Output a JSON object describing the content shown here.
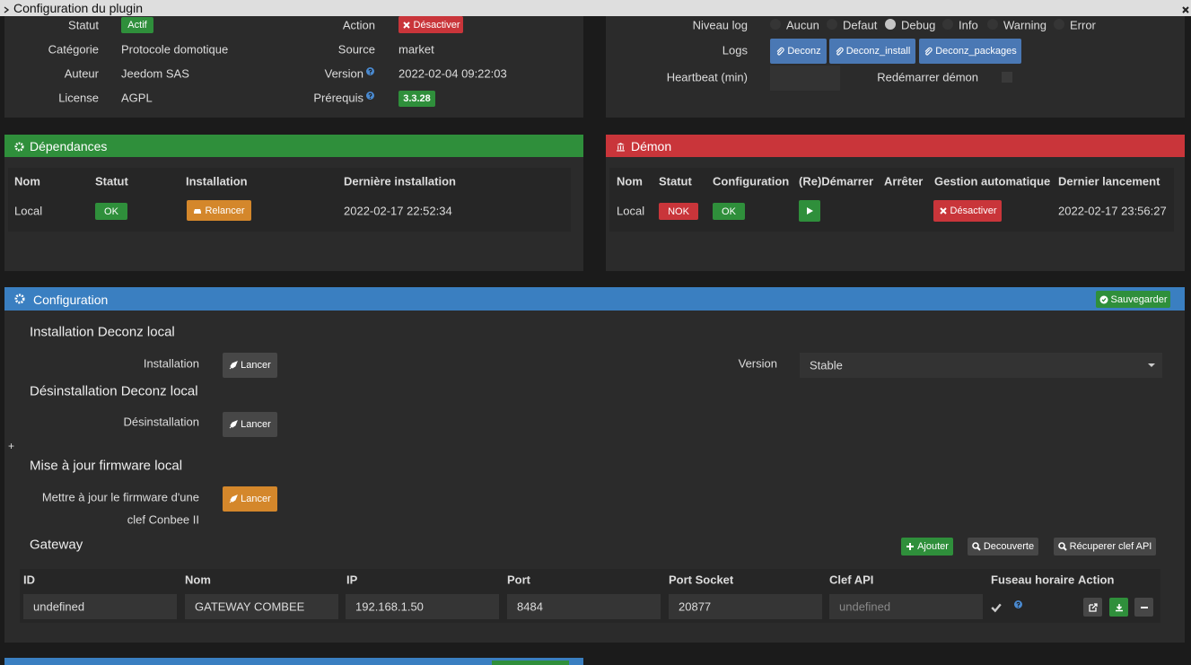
{
  "window": {
    "title": "Configuration du plugin"
  },
  "info": {
    "statut_label": "Statut",
    "statut": "Actif",
    "action_label": "Action",
    "action": "Désactiver",
    "categorie_label": "Catégorie",
    "categorie": "Protocole domotique",
    "source_label": "Source",
    "source": "market",
    "auteur_label": "Auteur",
    "auteur": "Jeedom SAS",
    "version_label": "Version",
    "version": "2022-02-04 09:22:03",
    "license_label": "License",
    "license": "AGPL",
    "prerequis_label": "Prérequis",
    "prerequis": "3.3.28"
  },
  "logs": {
    "level_label": "Niveau log",
    "levels": [
      "Aucun",
      "Defaut",
      "Debug",
      "Info",
      "Warning",
      "Error"
    ],
    "selected_level": 2,
    "logs_label": "Logs",
    "buttons": [
      "Deconz",
      "Deconz_install",
      "Deconz_packages"
    ],
    "heartbeat_label": "Heartbeat (min)",
    "restart_label": "Redémarrer démon"
  },
  "dependances": {
    "title": "Dépendances",
    "columns": [
      "Nom",
      "Statut",
      "Installation",
      "Dernière installation"
    ],
    "row": {
      "nom": "Local",
      "statut": "OK",
      "installation": "Relancer",
      "date": "2022-02-17 22:52:34"
    }
  },
  "demon": {
    "title": "Démon",
    "columns": [
      "Nom",
      "Statut",
      "Configuration",
      "(Re)Démarrer",
      "Arrêter",
      "Gestion automatique",
      "Dernier lancement"
    ],
    "row": {
      "nom": "Local",
      "statut": "NOK",
      "configuration": "OK",
      "gestion": "Désactiver",
      "date": "2022-02-17 23:56:27"
    }
  },
  "configuration": {
    "title": "Configuration",
    "save": "Sauvegarder",
    "installation": {
      "heading": "Installation Deconz local",
      "label": "Installation",
      "button": "Lancer",
      "version_label": "Version",
      "version": "Stable"
    },
    "desinstallation": {
      "heading": "Désinstallation Deconz local",
      "label": "Désinstallation",
      "button": "Lancer"
    },
    "expand": "+",
    "firmware": {
      "heading": "Mise à jour firmware local",
      "label_lines": [
        "Mettre à jour le firmware d'une",
        "clef Conbee II"
      ],
      "button": "Lancer"
    },
    "gateway": {
      "heading": "Gateway",
      "buttons": [
        "Ajouter",
        "Decouverte",
        "Récuperer clef API"
      ],
      "columns": [
        "ID",
        "Nom",
        "IP",
        "Port",
        "Port Socket",
        "Clef API",
        "Fuseau horaire",
        "Action"
      ],
      "row": [
        "undefined",
        "GATEWAY COMBEE",
        "192.168.1.50",
        "8484",
        "20877",
        "undefined"
      ]
    }
  }
}
